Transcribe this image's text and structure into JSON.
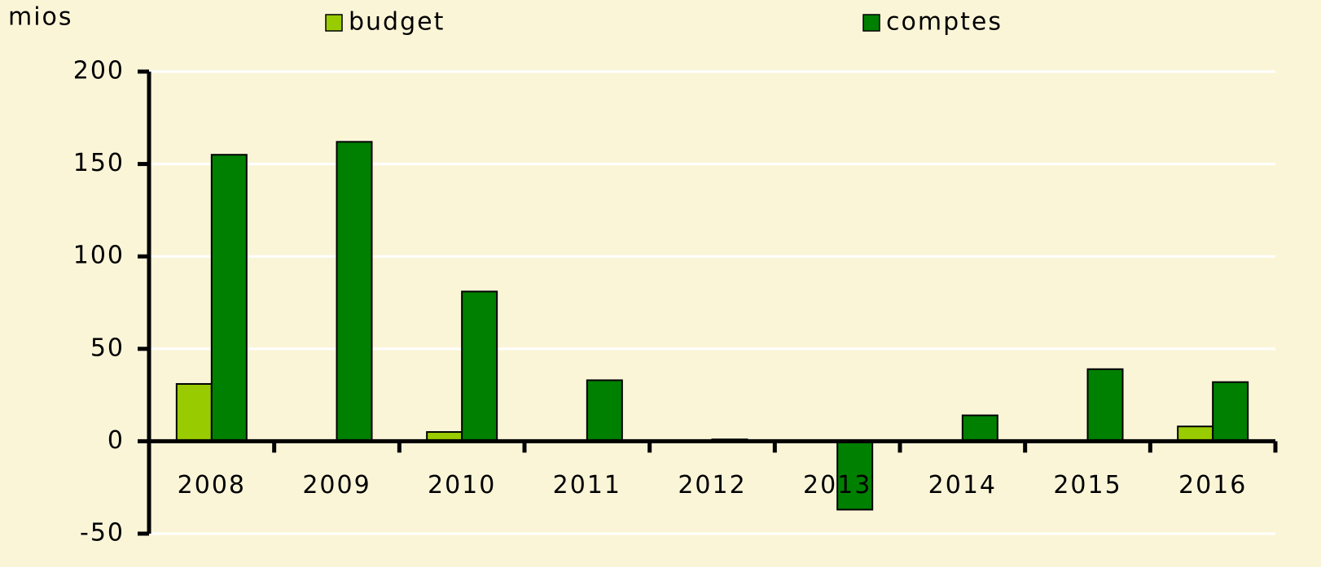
{
  "chart_data": {
    "type": "bar",
    "y_unit": "mios",
    "categories": [
      "2008",
      "2009",
      "2010",
      "2011",
      "2012",
      "2013",
      "2014",
      "2015",
      "2016"
    ],
    "series": [
      {
        "name": "budget",
        "color": "#99cc00",
        "values": [
          31,
          0,
          5,
          0,
          0,
          0,
          0,
          0,
          8
        ]
      },
      {
        "name": "comptes",
        "color": "#008000",
        "values": [
          155,
          162,
          81,
          33,
          1,
          -37,
          14,
          39,
          32
        ]
      }
    ],
    "ylim": [
      -50,
      200
    ],
    "yticks": [
      -50,
      0,
      50,
      100,
      150,
      200
    ],
    "grid": true
  }
}
